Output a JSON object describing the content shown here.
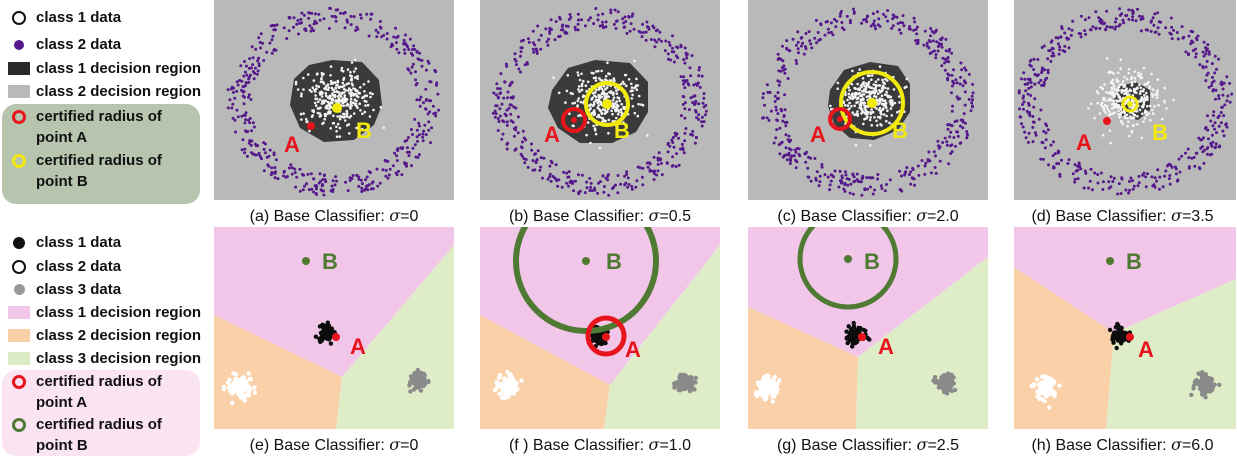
{
  "legend_top": {
    "items": [
      {
        "label": "class 1 data",
        "symbol": "open-circle"
      },
      {
        "label": "class 2 data",
        "symbol": "purple-dot"
      },
      {
        "label": "class 1 decision region",
        "symbol": "dark-swatch"
      },
      {
        "label": "class 2 decision region",
        "symbol": "gray-swatch"
      }
    ],
    "radius_a": {
      "line1": "certified radius of",
      "line2": "point A"
    },
    "radius_b": {
      "line1": "certified radius of",
      "line2": "point B"
    }
  },
  "legend_bottom": {
    "items": [
      {
        "label": "class 1 data",
        "symbol": "black-dot"
      },
      {
        "label": "class 2 data",
        "symbol": "open-circle"
      },
      {
        "label": "class 3 data",
        "symbol": "gray-dot"
      },
      {
        "label": "class 1 decision region",
        "symbol": "pink-swatch"
      },
      {
        "label": "class 2 decision region",
        "symbol": "orange-swatch"
      },
      {
        "label": "class 3 decision region",
        "symbol": "green-swatch"
      }
    ],
    "radius_a": {
      "line1": "certified radius of",
      "line2": "point A"
    },
    "radius_b": {
      "line1": "certified radius of",
      "line2": "point B"
    }
  },
  "colors": {
    "gray_region": "#b9b9b9",
    "dark_region": "#3a3a3a",
    "purple": "#55198b",
    "red": "#e8141c",
    "yellow": "#f2ea0e",
    "green_ring": "#4f7a33",
    "pink_region": "#f1c6e8",
    "orange_region": "#f9d0a8",
    "green_region": "#deedc8",
    "legend_top_bg": "#b7c4ae",
    "legend_bot_bg": "#fbe4f2"
  },
  "point_labels": {
    "a": "A",
    "b": "B"
  },
  "captions_top": [
    {
      "prefix": "(a) Base Classifier: ",
      "sigma": "σ",
      "value": "=0"
    },
    {
      "prefix": "(b) Base Classifier: ",
      "sigma": "σ",
      "value": "=0.5"
    },
    {
      "prefix": "(c) Base Classifier: ",
      "sigma": "σ",
      "value": "=2.0"
    },
    {
      "prefix": "(d) Base Classifier: ",
      "sigma": "σ",
      "value": "=3.5"
    }
  ],
  "captions_bottom": [
    {
      "prefix": "(e) Base Classifier: ",
      "sigma": "σ",
      "value": "=0"
    },
    {
      "prefix": "(f ) Base Classifier: ",
      "sigma": "σ",
      "value": "=1.0"
    },
    {
      "prefix": "(g) Base Classifier: ",
      "sigma": "σ",
      "value": "=2.5"
    },
    {
      "prefix": "(h) Base Classifier: ",
      "sigma": "σ",
      "value": "=6.0"
    }
  ]
}
